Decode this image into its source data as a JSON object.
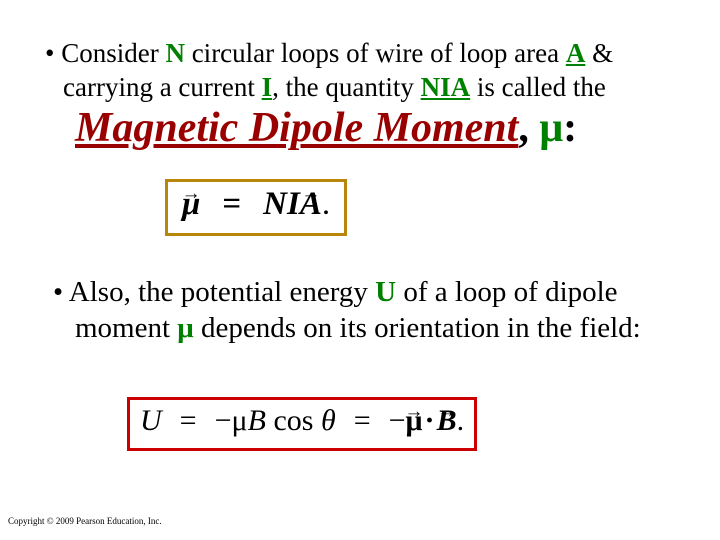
{
  "bullet1": {
    "prefix": "• Consider ",
    "N": "N",
    "t1": " circular loops of wire of loop area ",
    "A": "A",
    "t2": " & carrying a current ",
    "I": "I",
    "t3": ", the quantity ",
    "NIA": "NIA",
    "t4": " is called the"
  },
  "title": {
    "main": "Magnetic Dipole Moment",
    "comma": ", ",
    "mu": "μ",
    "colon": ":"
  },
  "formula1": {
    "mu": "μ",
    "eq": "=",
    "NI": "NI",
    "A": "A",
    "period": "."
  },
  "bullet2": {
    "prefix": "•  Also, the potential energy ",
    "U": "U",
    "t1": " of a loop of dipole moment ",
    "mu": "μ",
    "t2": "  depends on its orientation in the field:"
  },
  "formula2": {
    "U": "U",
    "eq1": "=",
    "neg1": "−",
    "mu": "μ",
    "B": "B",
    "cos": " cos ",
    "theta": "θ",
    "eq2": "=",
    "neg2": "−",
    "muVec": "μ",
    "dot": "·",
    "BVec": "B",
    "period": "."
  },
  "copyright": "Copyright © 2009 Pearson Education, Inc.",
  "colors": {
    "green": "#008000",
    "darkred": "#990000",
    "brownBorder": "#b8860b",
    "redBorder": "#cc0000"
  }
}
